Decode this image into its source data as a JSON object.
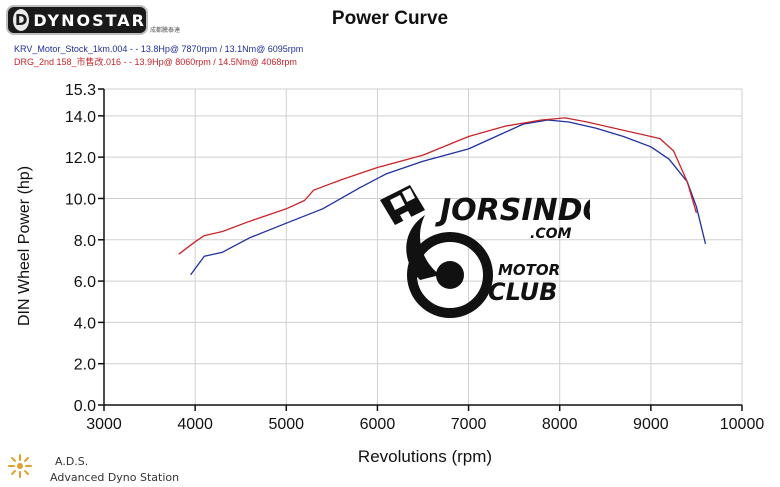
{
  "header": {
    "logo_text": "DYNOSTAR",
    "logo_badge": "D",
    "logo_sub": "成都騰泰達",
    "title": "Power Curve",
    "run1_text": "KRV_Motor_Stock_1km.004 - - 13.8Hp@ 7870rpm / 13.1Nm@ 6095rpm",
    "run2_text": "DRG_2nd 158_市售改.016 - - 13.9Hp@ 8060rpm / 14.5Nm@ 4068rpm"
  },
  "footer": {
    "ads_name": "A.D.S.",
    "ads_sub": "Advanced Dyno Station"
  },
  "watermark": {
    "name": "JORSINDO",
    "domain": ".COM",
    "line1": "MOTOR",
    "line2": "CLUB",
    "icon": "checkered-flag-wheel-icon"
  },
  "colors": {
    "run1": "#1f2f9e",
    "run2": "#c8242a",
    "grid": "#cfcfcf",
    "axis": "#111111"
  },
  "chart_data": {
    "type": "line",
    "title": "Power Curve",
    "xlabel": "Revolutions (rpm)",
    "ylabel": "DIN Wheel Power (hp)",
    "xlim": [
      3000,
      10000
    ],
    "ylim": [
      0,
      15.3
    ],
    "xticks": [
      3000,
      4000,
      5000,
      6000,
      7000,
      8000,
      9000,
      10000
    ],
    "yticks": [
      0.0,
      2.0,
      4.0,
      6.0,
      8.0,
      10.0,
      12.0,
      14.0,
      15.3
    ],
    "xtick_labels": [
      "3000",
      "4000",
      "5000",
      "6000",
      "7000",
      "8000",
      "9000",
      "10000"
    ],
    "ytick_labels": [
      "0.0",
      "2.0",
      "4.0",
      "6.0",
      "8.0",
      "10.0",
      "12.0",
      "14.0",
      "15.3"
    ],
    "grid": true,
    "legend": "top-left",
    "series": [
      {
        "name": "KRV_Motor_Stock_1km.004",
        "x": [
          3950,
          4100,
          4300,
          4600,
          5000,
          5400,
          5800,
          6100,
          6500,
          7000,
          7300,
          7600,
          7870,
          8100,
          8400,
          8700,
          9000,
          9200,
          9400,
          9500,
          9600
        ],
        "y": [
          6.3,
          7.2,
          7.4,
          8.1,
          8.8,
          9.5,
          10.5,
          11.2,
          11.8,
          12.4,
          13.0,
          13.6,
          13.8,
          13.7,
          13.4,
          13.0,
          12.5,
          11.9,
          10.8,
          9.6,
          7.8
        ]
      },
      {
        "name": "DRG_2nd 158_市售改.016",
        "x": [
          3820,
          4000,
          4100,
          4300,
          4600,
          5000,
          5200,
          5300,
          5600,
          6000,
          6500,
          7000,
          7400,
          7800,
          8060,
          8300,
          8600,
          9000,
          9100,
          9250,
          9400,
          9500
        ],
        "y": [
          7.3,
          7.9,
          8.2,
          8.4,
          8.9,
          9.5,
          9.9,
          10.4,
          10.9,
          11.5,
          12.1,
          13.0,
          13.5,
          13.8,
          13.9,
          13.7,
          13.4,
          13.0,
          12.9,
          12.3,
          10.8,
          9.3
        ]
      }
    ]
  }
}
